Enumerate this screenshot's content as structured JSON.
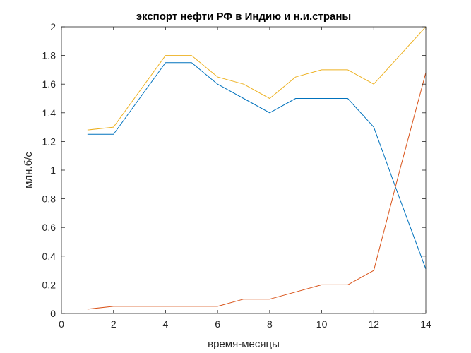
{
  "chart_data": {
    "type": "line",
    "title": "экспорт нефти РФ в Индию и н.и.страны",
    "xlabel": "время-месяцы",
    "ylabel": "млн.б/с",
    "xlim": [
      0,
      14
    ],
    "ylim": [
      0,
      2
    ],
    "xticks": [
      "0",
      "2",
      "4",
      "6",
      "8",
      "10",
      "12",
      "14"
    ],
    "yticks": [
      "0",
      "0.2",
      "0.4",
      "0.6",
      "0.8",
      "1",
      "1.2",
      "1.4",
      "1.6",
      "1.8",
      "2"
    ],
    "grid": false,
    "x": [
      1,
      2,
      3,
      4,
      5,
      6,
      7,
      8,
      9,
      10,
      11,
      12,
      13,
      14
    ],
    "series": [
      {
        "color": "#0072bd",
        "values": [
          1.25,
          1.25,
          1.5,
          1.75,
          1.75,
          1.6,
          1.5,
          1.4,
          1.5,
          1.5,
          1.5,
          1.3,
          0.8,
          0.31
        ]
      },
      {
        "color": "#d95319",
        "values": [
          0.03,
          0.05,
          0.05,
          0.05,
          0.05,
          0.05,
          0.1,
          0.1,
          0.15,
          0.2,
          0.2,
          0.3,
          1.0,
          1.68
        ]
      },
      {
        "color": "#edb120",
        "values": [
          1.28,
          1.3,
          1.55,
          1.8,
          1.8,
          1.65,
          1.6,
          1.5,
          1.65,
          1.7,
          1.7,
          1.6,
          1.8,
          2.0
        ]
      }
    ]
  }
}
